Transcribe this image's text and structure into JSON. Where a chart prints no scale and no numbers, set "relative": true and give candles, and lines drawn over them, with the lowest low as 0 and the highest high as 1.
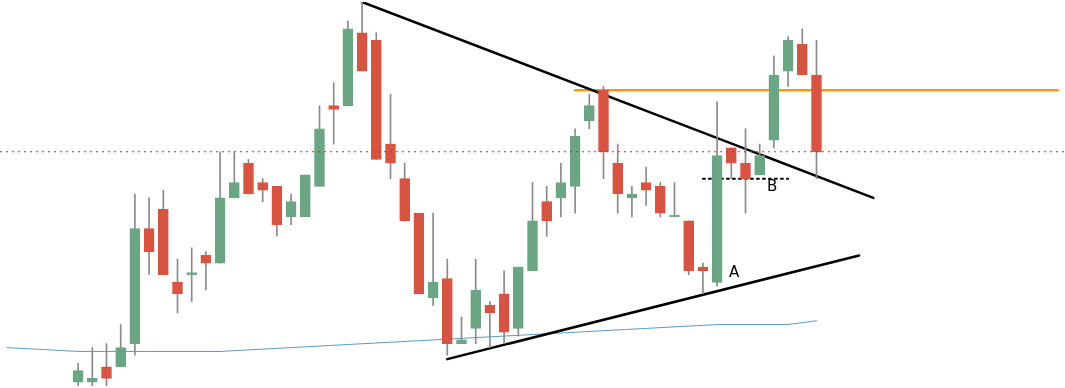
{
  "chart_data": {
    "type": "candlestick",
    "relative": true,
    "grid": false,
    "legend": false,
    "marker": "none",
    "categories": [
      null,
      null,
      null,
      null,
      null,
      null,
      null,
      null,
      null,
      null,
      null,
      null,
      null,
      null,
      null,
      null,
      null,
      null,
      null,
      null,
      null,
      null,
      null,
      null,
      null,
      null,
      null,
      null,
      null,
      null,
      null,
      null,
      null,
      null,
      null,
      null,
      null,
      null,
      null,
      null,
      null,
      null,
      null,
      null,
      null,
      null,
      null,
      null,
      null,
      null,
      null,
      null,
      null,
      null,
      null,
      null,
      null,
      null,
      null,
      null,
      null,
      null,
      null,
      null,
      null,
      null,
      null,
      null,
      null,
      null,
      null,
      null,
      null,
      null,
      null
    ],
    "ohlc": [
      null,
      null,
      null,
      null,
      null,
      [
        0.01,
        0.06,
        0,
        0.04
      ],
      [
        0.01,
        0.1,
        0,
        0.02
      ],
      [
        0.05,
        0.11,
        0,
        0.02
      ],
      [
        0.05,
        0.16,
        0.05,
        0.1
      ],
      [
        0.11,
        0.5,
        0.08,
        0.41
      ],
      [
        0.41,
        0.49,
        0.29,
        0.35
      ],
      [
        0.46,
        0.51,
        0.29,
        0.29
      ],
      [
        0.27,
        0.33,
        0.19,
        0.24
      ],
      [
        0.29,
        0.36,
        0.22,
        0.29
      ],
      [
        0.34,
        0.35,
        0.25,
        0.32
      ],
      [
        0.32,
        0.61,
        0.32,
        0.49
      ],
      [
        0.49,
        0.61,
        0.49,
        0.53
      ],
      [
        0.58,
        0.59,
        0.5,
        0.5
      ],
      [
        0.53,
        0.54,
        0.48,
        0.51
      ],
      [
        0.52,
        0.52,
        0.39,
        0.42
      ],
      [
        0.44,
        0.5,
        0.42,
        0.48
      ],
      [
        0.44,
        0.55,
        0.44,
        0.55
      ],
      [
        0.52,
        0.73,
        0.52,
        0.67
      ],
      [
        0.73,
        0.79,
        0.63,
        0.72
      ],
      [
        0.73,
        0.95,
        0.73,
        0.93
      ],
      [
        0.92,
        1.0,
        0.82,
        0.82
      ],
      [
        0.9,
        0.92,
        0.59,
        0.59
      ],
      [
        0.63,
        0.76,
        0.54,
        0.58
      ],
      [
        0.54,
        0.58,
        0.43,
        0.43
      ],
      [
        0.45,
        0.45,
        0.24,
        0.24
      ],
      [
        0.23,
        0.45,
        0.21,
        0.27
      ],
      [
        0.28,
        0.33,
        0.08,
        0.11
      ],
      [
        0.11,
        0.18,
        0.11,
        0.12
      ],
      [
        0.15,
        0.33,
        0.11,
        0.25
      ],
      [
        0.21,
        0.22,
        0.1,
        0.19
      ],
      [
        0.24,
        0.3,
        0.11,
        0.14
      ],
      [
        0.15,
        0.31,
        0.13,
        0.31
      ],
      [
        0.3,
        0.53,
        0.3,
        0.43
      ],
      [
        0.48,
        0.52,
        0.39,
        0.43
      ],
      [
        0.49,
        0.58,
        0.44,
        0.53
      ],
      [
        0.52,
        0.67,
        0.45,
        0.65
      ],
      [
        0.69,
        0.76,
        0.67,
        0.73
      ],
      [
        0.77,
        0.78,
        0.54,
        0.61
      ],
      [
        0.58,
        0.63,
        0.45,
        0.5
      ],
      [
        0.49,
        0.52,
        0.44,
        0.5
      ],
      [
        0.53,
        0.57,
        0.47,
        0.51
      ],
      [
        0.52,
        0.53,
        0.44,
        0.45
      ],
      [
        0.44,
        0.53,
        0.44,
        0.44
      ],
      [
        0.43,
        0.43,
        0.29,
        0.3
      ],
      [
        0.31,
        0.32,
        0.24,
        0.3
      ],
      [
        0.27,
        0.74,
        0.26,
        0.6
      ],
      [
        0.62,
        0.62,
        0.54,
        0.58
      ],
      [
        0.58,
        0.67,
        0.45,
        0.54
      ],
      [
        0.55,
        0.63,
        0.55,
        0.6
      ],
      [
        0.64,
        0.86,
        0.62,
        0.81
      ],
      [
        0.82,
        0.91,
        0.78,
        0.9
      ],
      [
        0.89,
        0.93,
        0.81,
        0.81
      ],
      [
        0.81,
        0.9,
        0.54,
        0.61
      ],
      null,
      null,
      null,
      null,
      null,
      null,
      null,
      null,
      null,
      null,
      null,
      null,
      null,
      null,
      null,
      null,
      null
    ],
    "colors": [
      null,
      null,
      null,
      null,
      null,
      "#6ba583",
      "#6ba583",
      "#d75442",
      "#6ba583",
      "#6ba583",
      "#d75442",
      "#d75442",
      "#d75442",
      "#6ba583",
      "#d75442",
      "#6ba583",
      "#6ba583",
      "#d75442",
      "#d75442",
      "#d75442",
      "#6ba583",
      "#6ba583",
      "#6ba583",
      "#d75442",
      "#6ba583",
      "#d75442",
      "#d75442",
      "#d75442",
      "#d75442",
      "#d75442",
      "#6ba583",
      "#d75442",
      "#6ba583",
      "#6ba583",
      "#d75442",
      "#d75442",
      "#6ba583",
      "#6ba583",
      "#d75442",
      "#6ba583",
      "#6ba583",
      "#6ba583",
      "#d75442",
      "#d75442",
      "#6ba583",
      "#d75442",
      "#d75442",
      "#6ba583",
      "#d75442",
      "#d75442",
      "#6ba583",
      "#d75442",
      "#d75442",
      "#6ba583",
      "#6ba583",
      "#6ba583",
      "#d75442",
      "#d75442",
      null,
      null,
      null,
      null,
      null,
      null,
      null,
      null,
      null,
      null,
      null,
      null,
      null,
      null,
      null,
      null,
      null
    ],
    "series": [
      {
        "type": "line",
        "color": "#000000",
        "values": [
          null,
          null,
          null,
          null,
          null,
          null,
          null,
          null,
          null,
          null,
          null,
          null,
          null,
          null,
          null,
          null,
          null,
          null,
          null,
          null,
          null,
          null,
          null,
          null,
          null,
          1.0,
          null,
          null,
          null,
          null,
          null,
          null,
          null,
          null,
          null,
          null,
          null,
          null,
          null,
          null,
          null,
          null,
          null,
          null,
          null,
          null,
          null,
          null,
          null,
          null,
          null,
          null,
          null,
          null,
          null,
          null,
          null,
          null,
          null,
          null,
          null,
          0.49,
          null,
          null,
          null,
          null,
          null,
          null,
          null,
          null,
          null,
          null,
          null,
          null,
          null
        ]
      },
      {
        "type": "line",
        "color": "#000000",
        "values": [
          null,
          null,
          null,
          null,
          null,
          null,
          null,
          null,
          null,
          null,
          null,
          null,
          null,
          null,
          null,
          null,
          null,
          null,
          null,
          null,
          null,
          null,
          null,
          null,
          null,
          null,
          null,
          null,
          null,
          null,
          null,
          0.07,
          null,
          null,
          null,
          null,
          null,
          null,
          null,
          null,
          null,
          null,
          null,
          null,
          null,
          null,
          null,
          null,
          null,
          null,
          null,
          null,
          null,
          null,
          null,
          null,
          null,
          null,
          null,
          null,
          0.34,
          null,
          null,
          null,
          null,
          null,
          null,
          null,
          null,
          null,
          null,
          null,
          null,
          null,
          null
        ]
      },
      {
        "type": "line",
        "color": "#ff9800",
        "values": [
          null,
          null,
          null,
          null,
          null,
          null,
          null,
          null,
          null,
          null,
          null,
          null,
          null,
          null,
          null,
          null,
          null,
          null,
          null,
          null,
          null,
          null,
          null,
          null,
          null,
          null,
          null,
          null,
          null,
          null,
          null,
          null,
          null,
          null,
          null,
          null,
          null,
          null,
          null,
          null,
          0.77,
          null,
          null,
          null,
          null,
          null,
          null,
          null,
          null,
          null,
          null,
          null,
          null,
          null,
          null,
          null,
          null,
          null,
          null,
          null,
          null,
          null,
          null,
          null,
          null,
          null,
          null,
          null,
          null,
          null,
          null,
          null,
          null,
          null,
          0.77
        ]
      },
      {
        "type": "line",
        "name": "B",
        "color": "#000000",
        "line_style": "dotted",
        "values": [
          null,
          null,
          null,
          null,
          null,
          null,
          null,
          null,
          null,
          null,
          null,
          null,
          null,
          null,
          null,
          null,
          null,
          null,
          null,
          null,
          null,
          null,
          null,
          null,
          null,
          null,
          null,
          null,
          null,
          null,
          null,
          null,
          null,
          null,
          null,
          null,
          null,
          null,
          null,
          null,
          null,
          null,
          null,
          null,
          null,
          null,
          null,
          null,
          null,
          0.54,
          null,
          null,
          null,
          null,
          null,
          0.54,
          null,
          null,
          null,
          null,
          null,
          null,
          null,
          null,
          null,
          null,
          null,
          null,
          null,
          null,
          null,
          null,
          null,
          null,
          null
        ]
      },
      {
        "type": "line",
        "color": "#5b9bc4",
        "values": [
          0.1,
          null,
          null,
          null,
          null,
          0.09,
          null,
          null,
          null,
          null,
          0.09,
          null,
          null,
          null,
          null,
          0.09,
          null,
          null,
          null,
          null,
          0.1,
          null,
          null,
          null,
          null,
          0.11,
          null,
          null,
          null,
          null,
          0.12,
          null,
          null,
          null,
          null,
          0.13,
          null,
          null,
          null,
          null,
          0.14,
          null,
          null,
          null,
          null,
          0.15,
          null,
          null,
          null,
          null,
          0.16,
          null,
          null,
          null,
          null,
          0.16,
          null,
          0.17,
          null,
          null,
          null,
          null,
          null,
          null,
          null,
          null,
          null,
          null,
          null,
          null,
          null,
          null,
          null,
          null,
          null
        ]
      }
    ],
    "ref_lines": [
      {
        "axis": "y",
        "value": 0.61,
        "color": "#c0392b",
        "line_style": "dotted"
      }
    ],
    "annotations": [
      "A"
    ]
  }
}
